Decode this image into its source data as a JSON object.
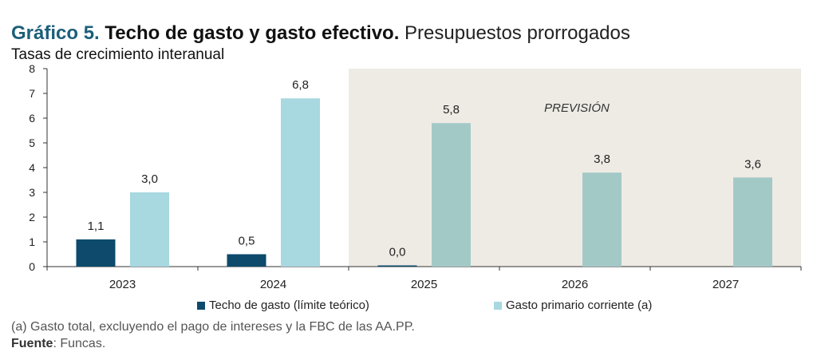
{
  "header": {
    "label": "Gráfico 5.",
    "title": "Techo de gasto y gasto efectivo.",
    "title_suffix": "Presupuestos prorrogados",
    "subtitle": "Tasas de crecimiento interanual"
  },
  "chart_data": {
    "type": "bar",
    "categories": [
      "2023",
      "2024",
      "2025",
      "2026",
      "2027"
    ],
    "ylim": [
      0,
      8
    ],
    "yticks": [
      0,
      1,
      2,
      3,
      4,
      5,
      6,
      7,
      8
    ],
    "series": [
      {
        "name": "Techo de gasto (límite teórico)",
        "values": [
          1.1,
          0.5,
          0.0,
          null,
          null
        ],
        "labels": [
          "1,1",
          "0,5",
          "0,0",
          null,
          null
        ]
      },
      {
        "name": "Gasto primario corriente (a)",
        "values": [
          3.0,
          6.8,
          5.8,
          3.8,
          3.6
        ],
        "labels": [
          "3,0",
          "6,8",
          "5,8",
          "3,8",
          "3,6"
        ]
      }
    ],
    "forecast_label": "PREVISIÓN",
    "forecast_start_category": "2025",
    "legend_position": "bottom"
  },
  "colors": {
    "techo": "#0d4a6b",
    "gasto": "#a8d8e0",
    "gasto_forecast": "#a3c9c7",
    "forecast_bg": "#eeebe4",
    "axis": "#333333"
  },
  "footer": {
    "note": "(a) Gasto total, excluyendo el pago de intereses y la FBC de las AA.PP.",
    "source_label": "Fuente",
    "source_text": ": Funcas."
  }
}
